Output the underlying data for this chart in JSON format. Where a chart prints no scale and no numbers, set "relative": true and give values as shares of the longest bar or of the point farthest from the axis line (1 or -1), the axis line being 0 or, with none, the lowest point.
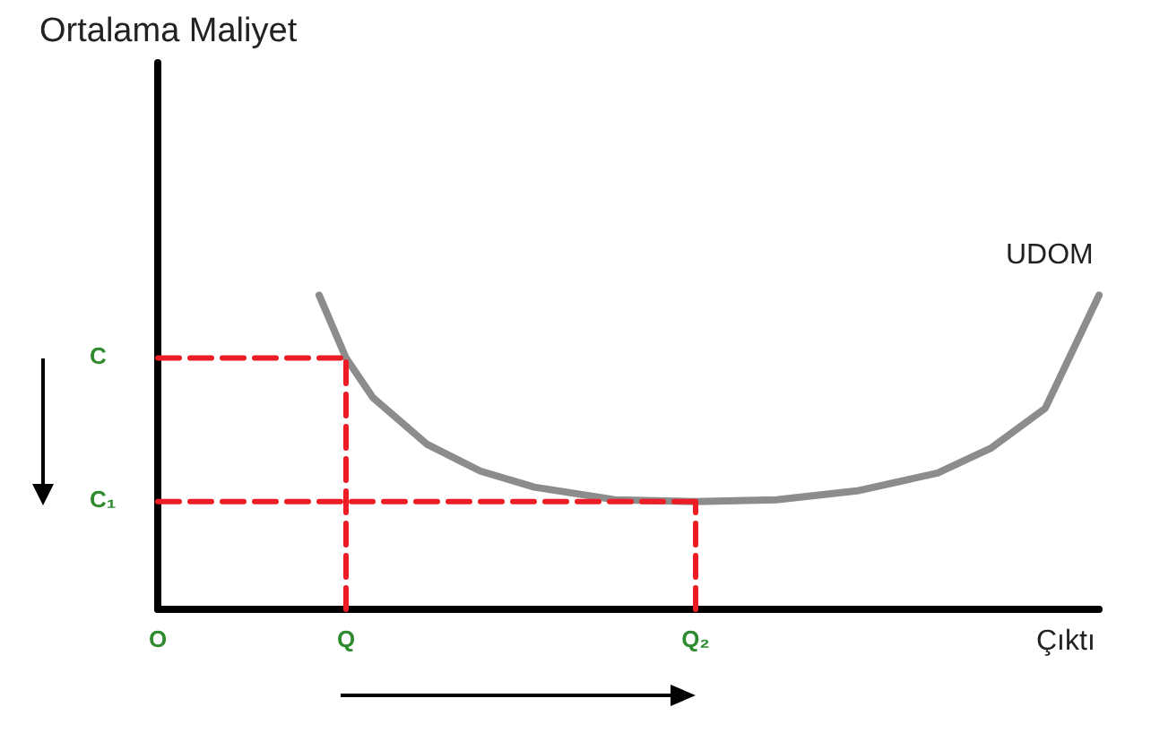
{
  "chart_data": {
    "type": "line",
    "relative": true,
    "xlabel": "Çıktı",
    "categories": [
      "O",
      null,
      null,
      null,
      null,
      null,
      null,
      "Q",
      null,
      null,
      null,
      null,
      null,
      null,
      null,
      null,
      null,
      null,
      null,
      null,
      "Q₂",
      null,
      null,
      null,
      null,
      null,
      null,
      null,
      null,
      null,
      null,
      null,
      null,
      null,
      null,
      null
    ],
    "series": [
      {
        "name": "UDOM",
        "color": "#8c8c8c",
        "line_style": "solid",
        "values": [
          null,
          null,
          null,
          null,
          null,
          null,
          1.0,
          0.8,
          0.674,
          null,
          0.526,
          null,
          0.44,
          null,
          0.389,
          null,
          null,
          0.349,
          null,
          null,
          0.343,
          null,
          null,
          0.349,
          null,
          null,
          0.377,
          null,
          null,
          0.434,
          null,
          0.514,
          null,
          0.64,
          null,
          1.0
        ]
      },
      {
        "color": "#ee1c24",
        "line_style": "dashed",
        "x": [
          "O",
          "Q"
        ],
        "values": [
          0.8,
          0.8
        ]
      },
      {
        "color": "#ee1c24",
        "line_style": "dashed",
        "x": [
          "Q",
          "Q"
        ],
        "values": [
          0,
          0.8
        ]
      },
      {
        "color": "#ee1c24",
        "line_style": "dashed",
        "x": [
          "O",
          "Q₂"
        ],
        "values": [
          0.343,
          0.343
        ]
      },
      {
        "color": "#ee1c24",
        "line_style": "dashed",
        "x": [
          "Q₂",
          "Q₂"
        ],
        "values": [
          0,
          0.343
        ]
      }
    ],
    "annotations": [
      "Ortalama Maliyet",
      "C",
      "C₁"
    ],
    "marker": "none",
    "grid": false,
    "legend": false
  }
}
